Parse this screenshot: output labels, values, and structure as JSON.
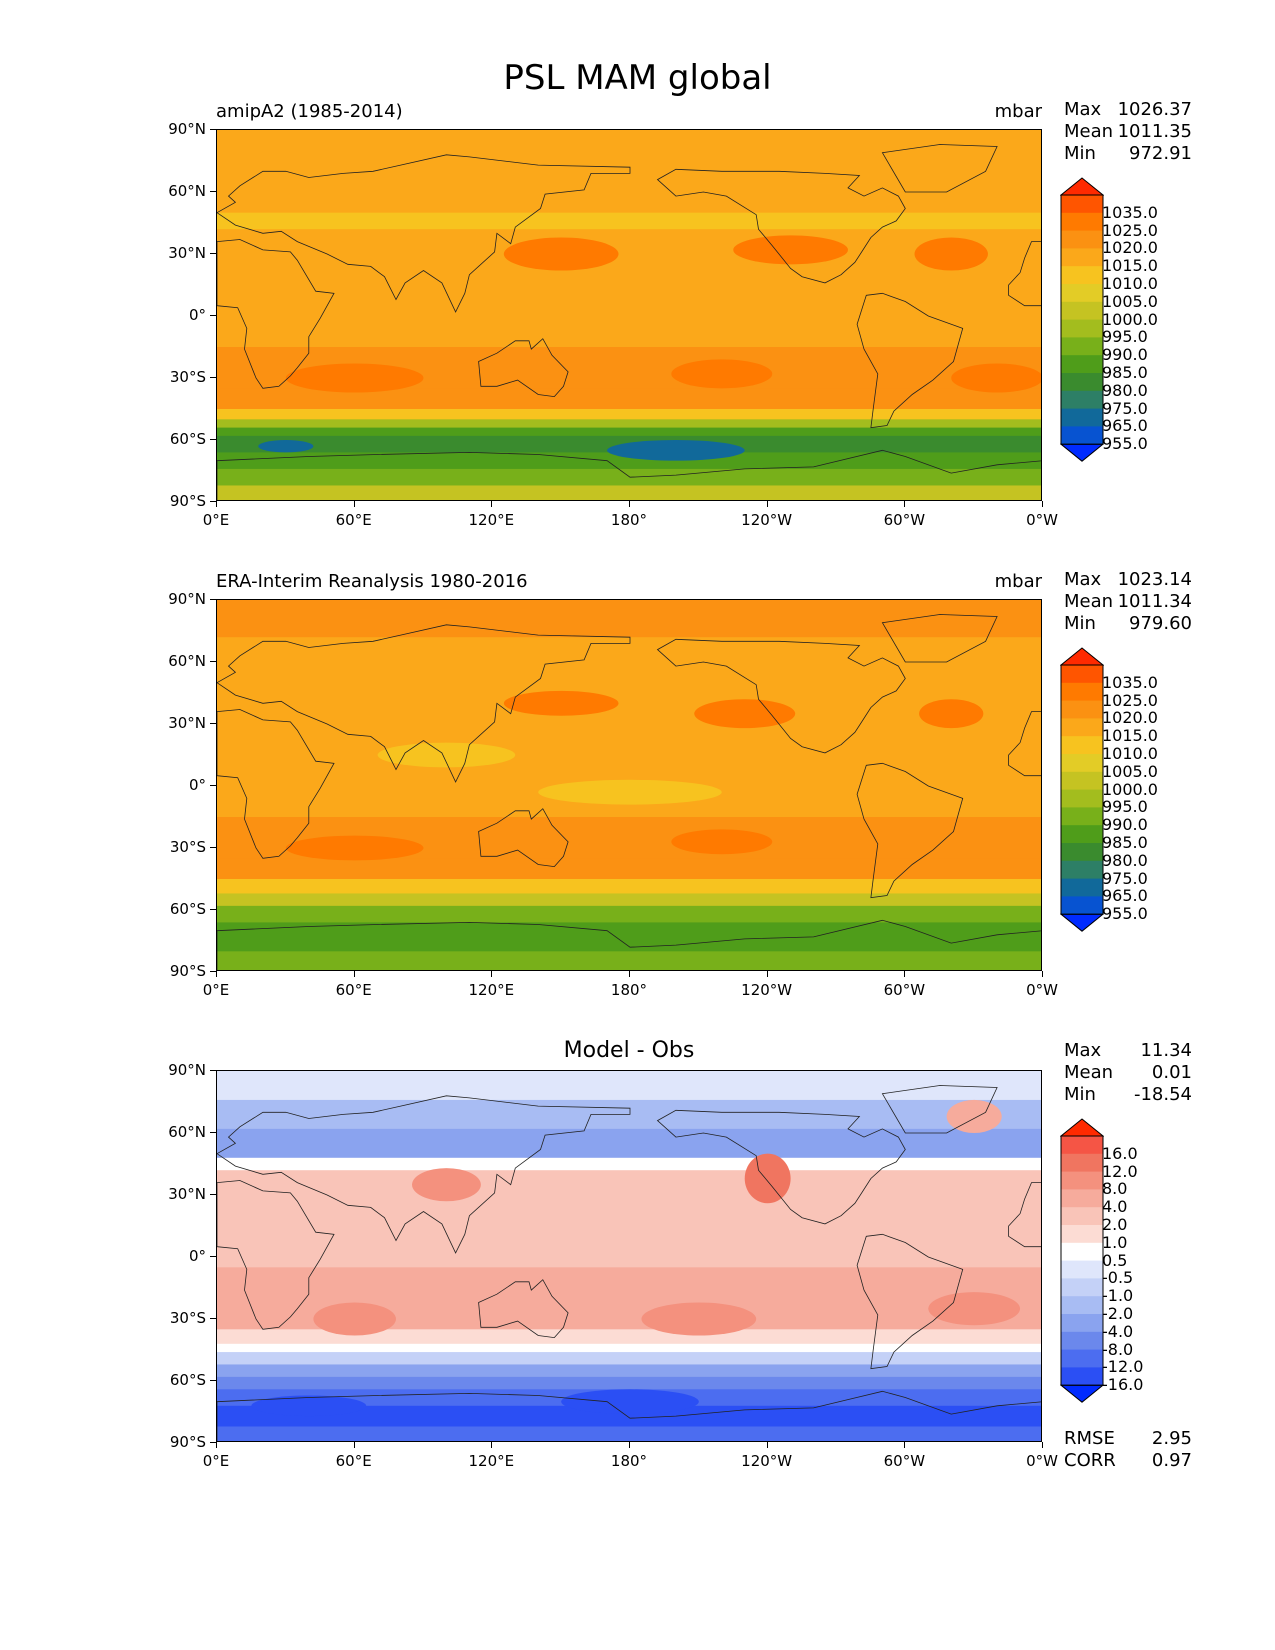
{
  "title": "PSL MAM global",
  "axes": {
    "y_ticks": [
      "90°N",
      "60°N",
      "30°N",
      "0°",
      "30°S",
      "60°S",
      "90°S"
    ],
    "x_ticks": [
      "0°E",
      "60°E",
      "120°E",
      "180°",
      "120°W",
      "60°W",
      "0°W"
    ]
  },
  "panels": [
    {
      "id": "model",
      "left_title": "amipA2 (1985-2014)",
      "center_title": "",
      "units": "mbar",
      "stats": [
        {
          "label": "Max",
          "value": "1026.37"
        },
        {
          "label": "Mean",
          "value": "1011.35"
        },
        {
          "label": "Min",
          "value": "972.91"
        }
      ],
      "colorbar": {
        "labels": [
          "1035.0",
          "1025.0",
          "1020.0",
          "1015.0",
          "1010.0",
          "1005.0",
          "1000.0",
          "995.0",
          "990.0",
          "985.0",
          "980.0",
          "975.0",
          "965.0",
          "955.0"
        ],
        "colors": [
          "#ff2a00",
          "#ff5500",
          "#ff7a00",
          "#fb9112",
          "#fba81a",
          "#f7c31f",
          "#e3cc26",
          "#c5c322",
          "#a3bd1e",
          "#78b01a",
          "#4f9d1a",
          "#3a8b2e",
          "#2d7f66",
          "#11699a",
          "#0753d1",
          "#002bff"
        ]
      },
      "extra_stats": []
    },
    {
      "id": "obs",
      "left_title": "ERA-Interim Reanalysis 1980-2016",
      "center_title": "",
      "units": "mbar",
      "stats": [
        {
          "label": "Max",
          "value": "1023.14"
        },
        {
          "label": "Mean",
          "value": "1011.34"
        },
        {
          "label": "Min",
          "value": "979.60"
        }
      ],
      "colorbar": {
        "labels": [
          "1035.0",
          "1025.0",
          "1020.0",
          "1015.0",
          "1010.0",
          "1005.0",
          "1000.0",
          "995.0",
          "990.0",
          "985.0",
          "980.0",
          "975.0",
          "965.0",
          "955.0"
        ],
        "colors": [
          "#ff2a00",
          "#ff5500",
          "#ff7a00",
          "#fb9112",
          "#fba81a",
          "#f7c31f",
          "#e3cc26",
          "#c5c322",
          "#a3bd1e",
          "#78b01a",
          "#4f9d1a",
          "#3a8b2e",
          "#2d7f66",
          "#11699a",
          "#0753d1",
          "#002bff"
        ]
      },
      "extra_stats": []
    },
    {
      "id": "diff",
      "left_title": "",
      "center_title": "Model - Obs",
      "units": "",
      "stats": [
        {
          "label": "Max",
          "value": "11.34"
        },
        {
          "label": "Mean",
          "value": "0.01"
        },
        {
          "label": "Min",
          "value": "-18.54"
        }
      ],
      "colorbar": {
        "labels": [
          "16.0",
          "12.0",
          "8.0",
          "4.0",
          "2.0",
          "1.0",
          "0.5",
          "-0.5",
          "-1.0",
          "-2.0",
          "-4.0",
          "-8.0",
          "-12.0",
          "-16.0"
        ],
        "colors": [
          "#ff2a00",
          "#f55545",
          "#f07560",
          "#f4917e",
          "#f6ab9c",
          "#f9c4b8",
          "#fcdcd4",
          "#ffffff",
          "#dfe6fb",
          "#c4d1f7",
          "#a8bcf3",
          "#8aa3ef",
          "#6b88ec",
          "#4c6df0",
          "#2b4ff4",
          "#002bff"
        ]
      },
      "extra_stats": [
        {
          "label": "RMSE",
          "value": "2.95"
        },
        {
          "label": "CORR",
          "value": "0.97"
        }
      ]
    }
  ]
}
